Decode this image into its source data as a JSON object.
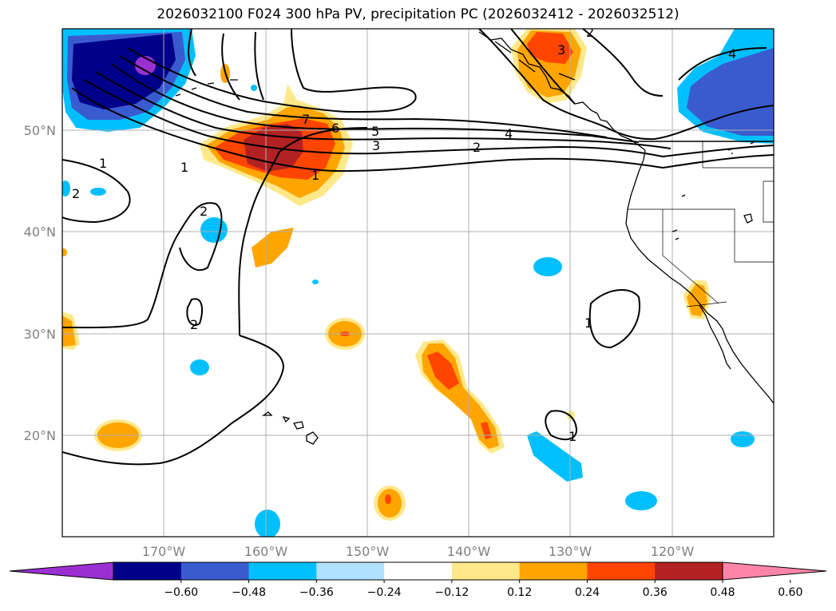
{
  "title": "2026032100 F024 300 hPa PV, precipitation PC (2026032412 - 2026032512)",
  "lat_labels": [
    "50°N",
    "40°N",
    "30°N",
    "20°N"
  ],
  "lon_labels": [
    "170°W",
    "160°W",
    "150°W",
    "140°W",
    "130°W",
    "120°W"
  ],
  "colorbar": {
    "ticks": [
      "−0.60",
      "−0.48",
      "−0.36",
      "−0.24",
      "−0.12",
      "0.12",
      "0.24",
      "0.36",
      "0.48",
      "0.60"
    ],
    "colors": [
      "#9b30d0",
      "#00008b",
      "#3a5bcf",
      "#00bfff",
      "#b0e2ff",
      "#ffffff",
      "#ffe88a",
      "#ffa500",
      "#ff4500",
      "#b22222",
      "#ff85a8"
    ]
  },
  "contour_labels": [
    "1",
    "1",
    "2",
    "2",
    "3",
    "4",
    "5",
    "6",
    "7",
    "1",
    "2",
    "3",
    "4",
    "1",
    "1",
    "2",
    "2"
  ],
  "colors": {
    "land": "#000000",
    "grid": "#b0b0b0"
  }
}
